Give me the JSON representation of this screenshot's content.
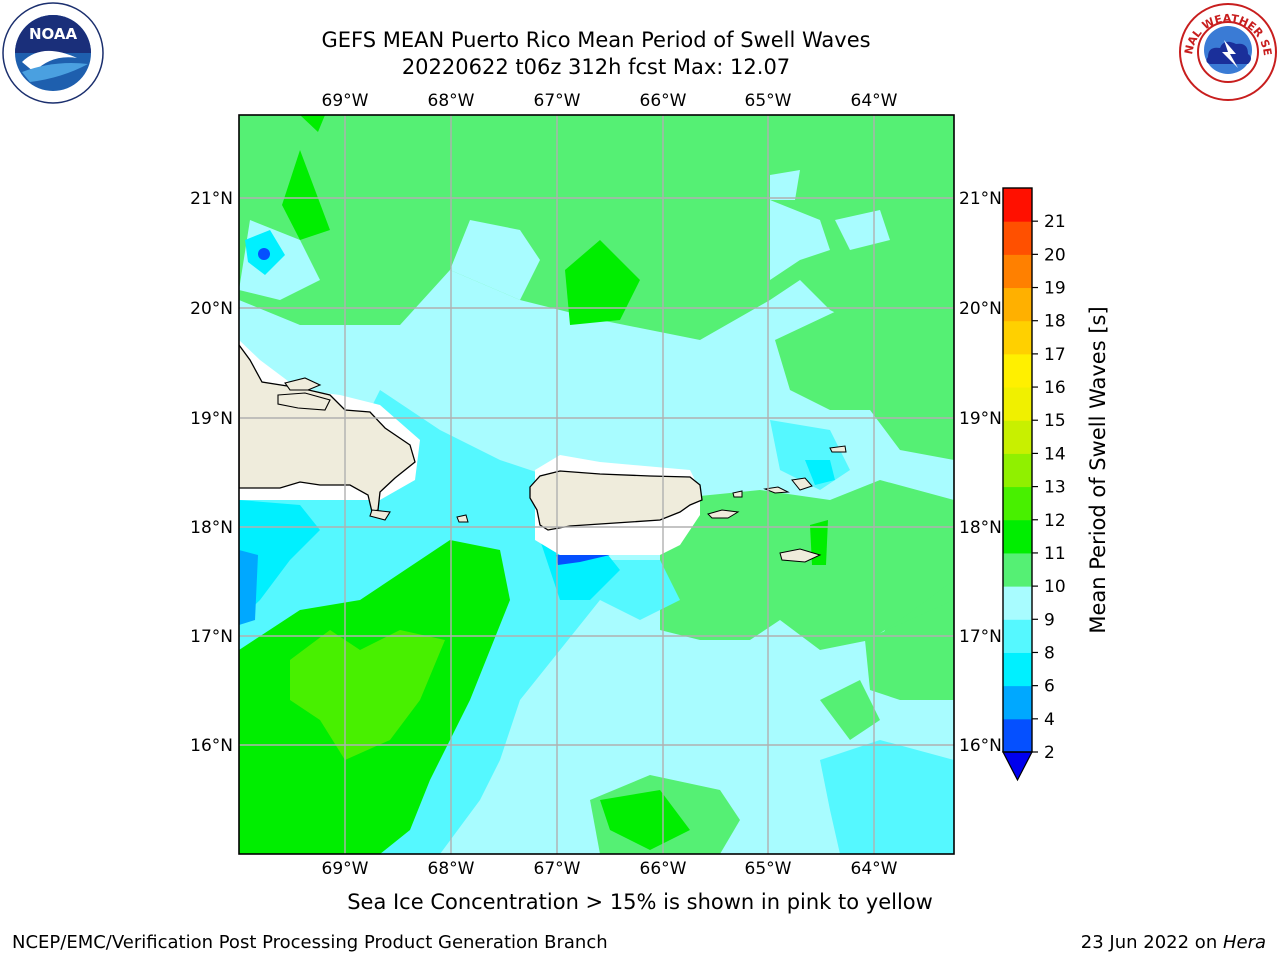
{
  "title": {
    "line1": "GEFS MEAN Puerto Rico Mean Period of Swell Waves",
    "line2": "20220622 t06z 312h fcst   Max: 12.07"
  },
  "logos": {
    "left": {
      "icon": "noaa-logo",
      "text": "NOAA",
      "ring_text": "NATIONAL OCEANIC AND ATMOSPHERIC ADMINISTRATION · U.S. DEPARTMENT OF COMMERCE"
    },
    "right": {
      "icon": "nws-logo",
      "ring_text": "NATIONAL WEATHER SERVICE"
    }
  },
  "map": {
    "lon_ticks": [
      "69°W",
      "68°W",
      "67°W",
      "66°W",
      "65°W",
      "64°W"
    ],
    "lat_ticks": [
      "21°N",
      "20°N",
      "19°N",
      "18°N",
      "17°N",
      "16°N"
    ],
    "lon_values": [
      -69,
      -68,
      -67,
      -66,
      -65,
      -64
    ],
    "lat_values": [
      21,
      20,
      19,
      18,
      17,
      16
    ],
    "extent": {
      "lon": [
        -70,
        -63.25
      ],
      "lat": [
        15,
        21.75
      ]
    },
    "grid": true,
    "land_color": "#efecdc",
    "land_features": [
      "Hispaniola (east)",
      "Puerto Rico",
      "Virgin Islands",
      "St. Croix",
      "Mona Island"
    ]
  },
  "colorbar": {
    "label": "Mean Period of Swell Waves [s]",
    "tick_labels": [
      "2",
      "4",
      "6",
      "8",
      "9",
      "10",
      "11",
      "12",
      "13",
      "14",
      "15",
      "16",
      "17",
      "18",
      "19",
      "20",
      "21"
    ],
    "colors": [
      "#0550ff",
      "#00a8ff",
      "#00f0ff",
      "#55f8ff",
      "#a8fcff",
      "#55f074",
      "#00ee00",
      "#48f000",
      "#90f000",
      "#c8f000",
      "#f0f000",
      "#fff000",
      "#ffd000",
      "#ffb000",
      "#ff8000",
      "#ff5000",
      "#ff1000"
    ],
    "extend_color": "#0000ee"
  },
  "caption": "Sea Ice Concentration > 15% is shown in pink to yellow",
  "footer": {
    "left": "NCEP/EMC/Verification Post Processing Product Generation Branch",
    "right_prefix": "23 Jun 2022 on ",
    "right_host": "Hera"
  }
}
